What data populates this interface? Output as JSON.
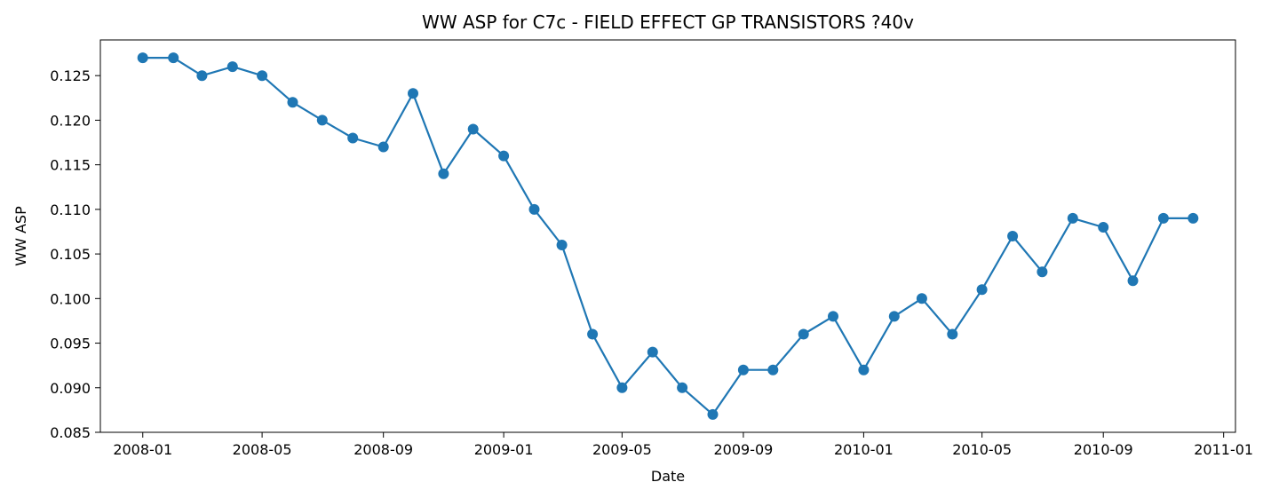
{
  "chart_data": {
    "type": "line",
    "title": "WW ASP for C7c - FIELD EFFECT GP TRANSISTORS ?40v",
    "xlabel": "Date",
    "ylabel": "WW ASP",
    "x": [
      "2008-01-01",
      "2008-02-01",
      "2008-03-01",
      "2008-04-01",
      "2008-05-01",
      "2008-06-01",
      "2008-07-01",
      "2008-08-01",
      "2008-09-01",
      "2008-10-01",
      "2008-11-01",
      "2008-12-01",
      "2009-01-01",
      "2009-02-01",
      "2009-03-01",
      "2009-04-01",
      "2009-05-01",
      "2009-06-01",
      "2009-07-01",
      "2009-08-01",
      "2009-09-01",
      "2009-10-01",
      "2009-11-01",
      "2009-12-01",
      "2010-01-01",
      "2010-02-01",
      "2010-03-01",
      "2010-04-01",
      "2010-05-01",
      "2010-06-01",
      "2010-07-01",
      "2010-08-01",
      "2010-09-01",
      "2010-10-01",
      "2010-11-01",
      "2010-12-01"
    ],
    "series": [
      {
        "values": [
          0.127,
          0.127,
          0.125,
          0.126,
          0.125,
          0.122,
          0.12,
          0.118,
          0.117,
          0.123,
          0.114,
          0.119,
          0.116,
          0.11,
          0.106,
          0.096,
          0.09,
          0.094,
          0.09,
          0.087,
          0.092,
          0.092,
          0.096,
          0.098,
          0.092,
          0.098,
          0.1,
          0.096,
          0.101,
          0.107,
          0.103,
          0.109,
          0.108,
          0.102,
          0.109,
          0.109
        ],
        "color": "#1f77b4"
      }
    ],
    "xticks": [
      "2008-01",
      "2008-05",
      "2008-09",
      "2009-01",
      "2009-05",
      "2009-09",
      "2010-01",
      "2010-05",
      "2010-09",
      "2011-01"
    ],
    "yticks": [
      "0.085",
      "0.090",
      "0.095",
      "0.100",
      "0.105",
      "0.110",
      "0.115",
      "0.120",
      "0.125"
    ],
    "ylim": [
      0.085,
      0.129
    ],
    "grid": false,
    "legend": "none"
  }
}
